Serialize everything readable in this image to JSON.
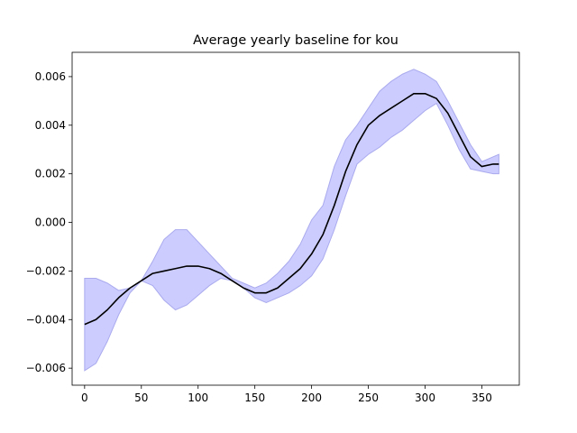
{
  "chart_data": {
    "type": "line",
    "title": "Average yearly baseline for kou",
    "xlabel": "",
    "ylabel": "",
    "xlim": [
      -11,
      383
    ],
    "ylim": [
      -0.0067,
      0.007
    ],
    "xticks": [
      0,
      50,
      100,
      150,
      200,
      250,
      300,
      350
    ],
    "yticks": [
      -0.006,
      -0.004,
      -0.002,
      0.0,
      0.002,
      0.004,
      0.006
    ],
    "ytick_labels": [
      "−0.006",
      "−0.004",
      "−0.002",
      "0.000",
      "0.002",
      "0.004",
      "0.006"
    ],
    "grid": false,
    "legend": "none",
    "colors": {
      "line": "#000000",
      "band_fill": "#ccccff",
      "band_edge": "#aaaaee"
    },
    "x": [
      0,
      10,
      20,
      30,
      40,
      50,
      60,
      70,
      80,
      90,
      100,
      110,
      120,
      130,
      140,
      150,
      160,
      170,
      180,
      190,
      200,
      210,
      220,
      230,
      240,
      250,
      260,
      270,
      280,
      290,
      300,
      310,
      320,
      330,
      340,
      350,
      360,
      365
    ],
    "series": [
      {
        "values": [
          -0.0042,
          -0.004,
          -0.0036,
          -0.0031,
          -0.0027,
          -0.0024,
          -0.0021,
          -0.002,
          -0.0019,
          -0.0018,
          -0.0018,
          -0.0019,
          -0.0021,
          -0.0024,
          -0.0027,
          -0.0029,
          -0.0029,
          -0.0027,
          -0.0023,
          -0.0019,
          -0.0013,
          -0.0005,
          0.0007,
          0.0021,
          0.0032,
          0.004,
          0.0044,
          0.0047,
          0.005,
          0.0053,
          0.0053,
          0.0051,
          0.0045,
          0.0036,
          0.0027,
          0.0023,
          0.0024,
          0.0024
        ],
        "lower": [
          -0.0061,
          -0.0058,
          -0.0049,
          -0.0038,
          -0.0029,
          -0.0024,
          -0.0026,
          -0.0032,
          -0.0036,
          -0.0034,
          -0.003,
          -0.0026,
          -0.0023,
          -0.0024,
          -0.0027,
          -0.0031,
          -0.0033,
          -0.0031,
          -0.0029,
          -0.0026,
          -0.0022,
          -0.0015,
          -0.0003,
          0.0011,
          0.0024,
          0.0028,
          0.0031,
          0.0035,
          0.0038,
          0.0042,
          0.0046,
          0.0049,
          0.004,
          0.003,
          0.0022,
          0.0021,
          0.002,
          0.002
        ],
        "upper": [
          -0.0023,
          -0.0023,
          -0.0025,
          -0.0028,
          -0.0027,
          -0.0024,
          -0.0016,
          -0.0007,
          -0.0003,
          -0.0003,
          -0.0008,
          -0.0013,
          -0.0018,
          -0.0023,
          -0.0025,
          -0.0027,
          -0.0025,
          -0.0021,
          -0.0016,
          -0.0009,
          0.0001,
          0.0007,
          0.0023,
          0.0034,
          0.004,
          0.0047,
          0.0054,
          0.0058,
          0.0061,
          0.0063,
          0.0061,
          0.0058,
          0.005,
          0.0041,
          0.0032,
          0.0025,
          0.0027,
          0.0028
        ]
      }
    ]
  }
}
